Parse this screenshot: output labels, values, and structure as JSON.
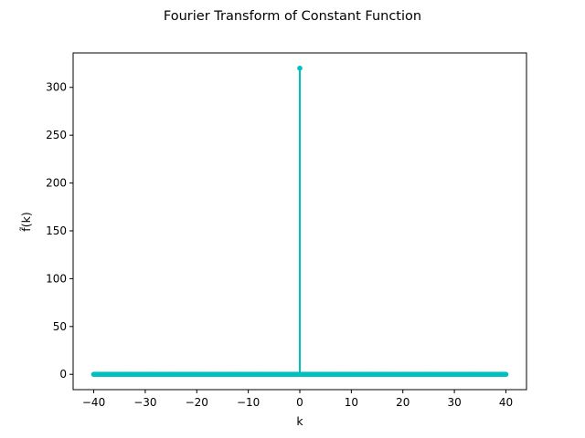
{
  "chart_data": {
    "type": "stem",
    "title": "Fourier Transform of Constant Function",
    "xlabel": "k",
    "ylabel": "f̃(k)",
    "xlim": [
      -44.0,
      44.0
    ],
    "ylim": [
      -16.0,
      336.0
    ],
    "xticks": [
      -40,
      -30,
      -20,
      -10,
      0,
      10,
      20,
      30,
      40
    ],
    "xtick_labels": [
      "−40",
      "−30",
      "−20",
      "−10",
      "0",
      "10",
      "20",
      "30",
      "40"
    ],
    "yticks": [
      0,
      50,
      100,
      150,
      200,
      250,
      300
    ],
    "ytick_labels": [
      "0",
      "50",
      "100",
      "150",
      "200",
      "250",
      "300"
    ],
    "grid": false,
    "series": [
      {
        "color": "#00bfbf",
        "x_range": [
          -40,
          40
        ],
        "num_points": 320,
        "baseline_value": 0,
        "peak": {
          "x": 0,
          "y": 320
        }
      }
    ]
  }
}
